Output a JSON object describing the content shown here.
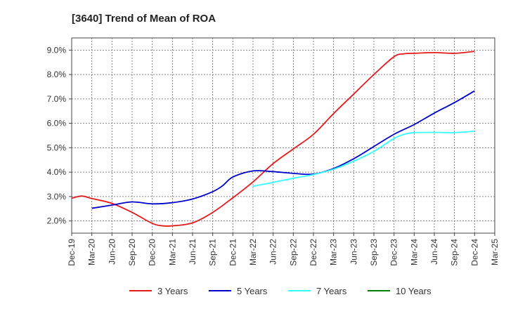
{
  "chart_data": {
    "type": "line",
    "title": "[3640]  Trend of Mean of ROA",
    "xlabel": "",
    "ylabel": "",
    "ylim": [
      1.5,
      9.5
    ],
    "y_ticks": [
      2.0,
      3.0,
      4.0,
      5.0,
      6.0,
      7.0,
      8.0,
      9.0
    ],
    "y_tick_labels": [
      "2.0%",
      "3.0%",
      "4.0%",
      "5.0%",
      "6.0%",
      "7.0%",
      "8.0%",
      "9.0%"
    ],
    "x_range": [
      0,
      21
    ],
    "categories": [
      "Dec-19",
      "Mar-20",
      "Jun-20",
      "Sep-20",
      "Dec-20",
      "Mar-21",
      "Jun-21",
      "Sep-21",
      "Dec-21",
      "Mar-22",
      "Jun-22",
      "Sep-22",
      "Dec-22",
      "Mar-23",
      "Jun-23",
      "Sep-23",
      "Dec-23",
      "Mar-24",
      "Jun-24",
      "Sep-24",
      "Dec-24",
      "Mar-25"
    ],
    "grid": true,
    "legend_position": "bottom",
    "series": [
      {
        "name": "3 Years",
        "color": "#e41a1c",
        "x": [
          0,
          0.5,
          1,
          2,
          3,
          4,
          4.5,
          5,
          6,
          7,
          8,
          9,
          10,
          11,
          12,
          13,
          14,
          15,
          16,
          16.5,
          17,
          18,
          19,
          20
        ],
        "values": [
          2.93,
          3.02,
          2.92,
          2.72,
          2.35,
          1.9,
          1.8,
          1.8,
          1.92,
          2.35,
          2.95,
          3.6,
          4.35,
          4.95,
          5.55,
          6.4,
          7.2,
          8.0,
          8.73,
          8.85,
          8.87,
          8.9,
          8.87,
          8.95
        ]
      },
      {
        "name": "5 Years",
        "color": "#0000cc",
        "x": [
          1,
          2,
          3,
          4,
          5,
          6,
          7,
          7.5,
          8,
          9,
          10,
          11,
          12,
          13,
          14,
          15,
          16,
          17,
          18,
          19,
          20
        ],
        "values": [
          2.52,
          2.65,
          2.78,
          2.7,
          2.75,
          2.9,
          3.2,
          3.45,
          3.8,
          4.05,
          4.02,
          3.95,
          3.92,
          4.15,
          4.55,
          5.05,
          5.55,
          5.95,
          6.42,
          6.85,
          7.33
        ]
      },
      {
        "name": "7 Years",
        "color": "#33ffff",
        "x": [
          9,
          10,
          11,
          12,
          13,
          14,
          15,
          16,
          16.5,
          17,
          18,
          19,
          20
        ],
        "values": [
          3.42,
          3.58,
          3.75,
          3.9,
          4.12,
          4.45,
          4.85,
          5.38,
          5.55,
          5.62,
          5.63,
          5.62,
          5.68
        ]
      },
      {
        "name": "10 Years",
        "color": "#008000",
        "x": [],
        "values": []
      }
    ]
  }
}
